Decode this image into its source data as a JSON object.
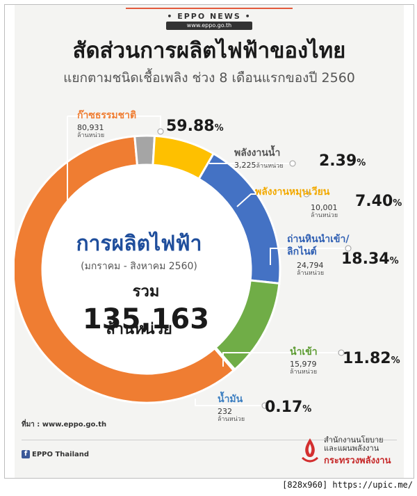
{
  "header": {
    "brand": "• EPPO NEWS •",
    "website": "www.eppo.go.th"
  },
  "title": "สัดส่วนการผลิตไฟฟ้าของไทย",
  "subtitle": "แยกตามชนิดเชื้อเพลิง ช่วง 8 เดือนแรกของปี 2560",
  "center": {
    "title": "การผลิตไฟฟ้า",
    "period": "(มกราคม - สิงหาคม 2560)",
    "total_prefix": "รวม",
    "total": "135,163",
    "unit": "ล้านหน่วย"
  },
  "chart_data": {
    "type": "pie",
    "style": "donut",
    "total": 135163,
    "value_unit": "ล้านหน่วย",
    "slices": [
      {
        "label": "ก๊าซธรรมชาติ",
        "value": 80931,
        "percent": 59.88,
        "value_text": "80,931",
        "unit": "ล้านหน่วย",
        "color": "#ef7d32"
      },
      {
        "label": "พลังงานน้ำ",
        "value": 3225,
        "percent": 2.39,
        "value_text": "3,225",
        "unit": "ล้านหน่วย",
        "color": "#a5a5a5"
      },
      {
        "label": "พลังงานหมุนเวียน",
        "value": 10001,
        "percent": 7.4,
        "value_text": "10,001",
        "unit": "ล้านหน่วย",
        "color": "#fec000"
      },
      {
        "label": "ถ่านหินนำเข้า/ลิกไนต์",
        "value": 24794,
        "percent": 18.34,
        "value_text": "24,794",
        "unit": "ล้านหน่วย",
        "color": "#4472c4"
      },
      {
        "label": "นำเข้า",
        "value": 15979,
        "percent": 11.82,
        "value_text": "15,979",
        "unit": "ล้านหน่วย",
        "color": "#70ad47"
      },
      {
        "label": "น้ำมัน",
        "value": 232,
        "percent": 0.17,
        "value_text": "232",
        "unit": "ล้านหน่วย",
        "color": "#5b9bd5"
      }
    ],
    "label_colors": {
      "ก๊าซธรรมชาติ": "#ef7d32",
      "พลังงานน้ำ": "#555555",
      "พลังงานหมุนเวียน": "#f2a900",
      "ถ่านหินนำเข้า/ลิกไนต์": "#2f5fb3",
      "นำเข้า": "#5a9a2f",
      "น้ำมัน": "#3d7fc1"
    },
    "pct_symbol": "%"
  },
  "footer": {
    "source": "ที่มา : www.eppo.go.th",
    "facebook": "EPPO Thailand",
    "org_line1": "สำนักงานนโยบาย",
    "org_line2": "และแผนพลังงาน",
    "org_line3": "กระทรวงพลังงาน"
  },
  "watermark": "[828x960] https://upic.me/"
}
